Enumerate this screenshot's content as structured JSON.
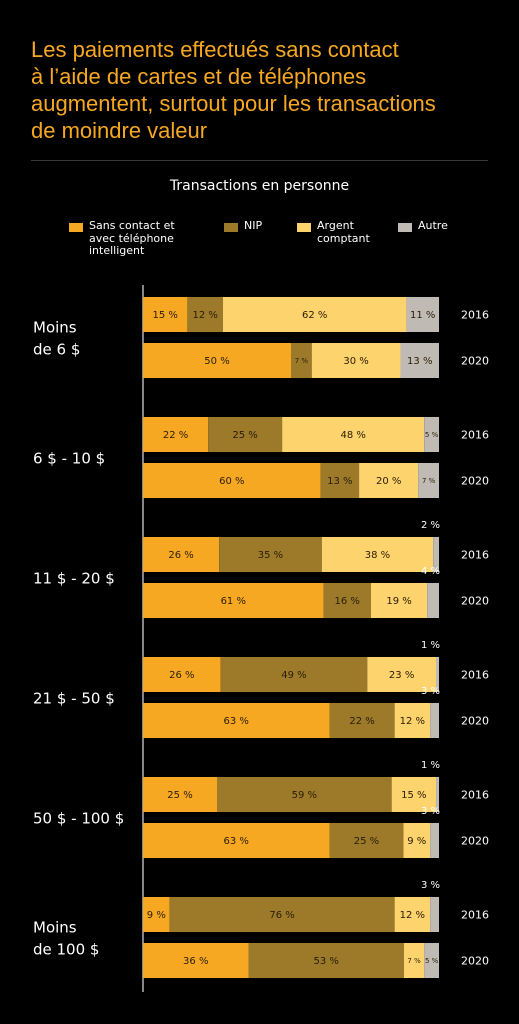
{
  "header": {
    "title_lines": [
      "Les paiements effectués sans contact",
      "à l’aide de cartes et de téléphones",
      "augmentent, surtout pour les transactions",
      "de moindre valeur"
    ],
    "subtitle": "Transactions en personne"
  },
  "legend": {
    "items": [
      {
        "label_lines": [
          "Sans contact et",
          "avec téléphone",
          "intelligent"
        ],
        "color": "#f7a823"
      },
      {
        "label_lines": [
          "NIP"
        ],
        "color": "#9c7a2a"
      },
      {
        "label_lines": [
          "Argent",
          "comptant"
        ],
        "color": "#fdd36e"
      },
      {
        "label_lines": [
          "Autre"
        ],
        "color": "#bfbbb4"
      }
    ]
  },
  "chart_data": {
    "type": "bar",
    "orientation": "horizontal",
    "stacked": true,
    "normalized_percent": true,
    "title": "Transactions en personne",
    "series_names": [
      "Sans contact et avec téléphone intelligent",
      "NIP",
      "Argent comptant",
      "Autre"
    ],
    "colors": [
      "#f7a823",
      "#9c7a2a",
      "#fdd36e",
      "#bfbbb4"
    ],
    "groups": [
      {
        "label_lines": [
          "Moins",
          "de 6 $"
        ],
        "bars": [
          {
            "year": "2016",
            "values": [
              15,
              12,
              62,
              11
            ],
            "labels": [
              "15 %",
              "12 %",
              "62 %",
              "11 %"
            ]
          },
          {
            "year": "2020",
            "values": [
              50,
              7,
              30,
              13
            ],
            "labels": [
              "50 %",
              "7 %",
              "30 %",
              "13 %"
            ]
          }
        ]
      },
      {
        "label_lines": [
          "6 $ - 10 $"
        ],
        "bars": [
          {
            "year": "2016",
            "values": [
              22,
              25,
              48,
              5
            ],
            "labels": [
              "22 %",
              "25 %",
              "48 %",
              "5 %"
            ]
          },
          {
            "year": "2020",
            "values": [
              60,
              13,
              20,
              7
            ],
            "labels": [
              "60 %",
              "13 %",
              "20 %",
              "7 %"
            ]
          }
        ]
      },
      {
        "label_lines": [
          "11 $ - 20 $"
        ],
        "bars": [
          {
            "year": "2016",
            "values": [
              26,
              35,
              38,
              2
            ],
            "labels": [
              "26 %",
              "35 %",
              "38 %",
              "2 %"
            ]
          },
          {
            "year": "2020",
            "values": [
              61,
              16,
              19,
              4
            ],
            "labels": [
              "61 %",
              "16 %",
              "19 %",
              "4 %"
            ]
          }
        ]
      },
      {
        "label_lines": [
          "21 $ - 50 $"
        ],
        "bars": [
          {
            "year": "2016",
            "values": [
              26,
              49,
              23,
              1
            ],
            "labels": [
              "26 %",
              "49 %",
              "23 %",
              "1 %"
            ]
          },
          {
            "year": "2020",
            "values": [
              63,
              22,
              12,
              3
            ],
            "labels": [
              "63 %",
              "22 %",
              "12 %",
              "3 %"
            ]
          }
        ]
      },
      {
        "label_lines": [
          "50 $ - 100 $"
        ],
        "bars": [
          {
            "year": "2016",
            "values": [
              25,
              59,
              15,
              1
            ],
            "labels": [
              "25 %",
              "59 %",
              "15 %",
              "1 %"
            ]
          },
          {
            "year": "2020",
            "values": [
              63,
              25,
              9,
              3
            ],
            "labels": [
              "63 %",
              "25 %",
              "9 %",
              "3 %"
            ]
          }
        ]
      },
      {
        "label_lines": [
          "Moins",
          "de 100 $"
        ],
        "bars": [
          {
            "year": "2016",
            "values": [
              9,
              76,
              12,
              3
            ],
            "labels": [
              "9 %",
              "76 %",
              "12 %",
              "3 %"
            ]
          },
          {
            "year": "2020",
            "values": [
              36,
              53,
              7,
              5
            ],
            "labels": [
              "36 %",
              "53 %",
              "7 %",
              "5 %"
            ]
          }
        ]
      }
    ]
  }
}
